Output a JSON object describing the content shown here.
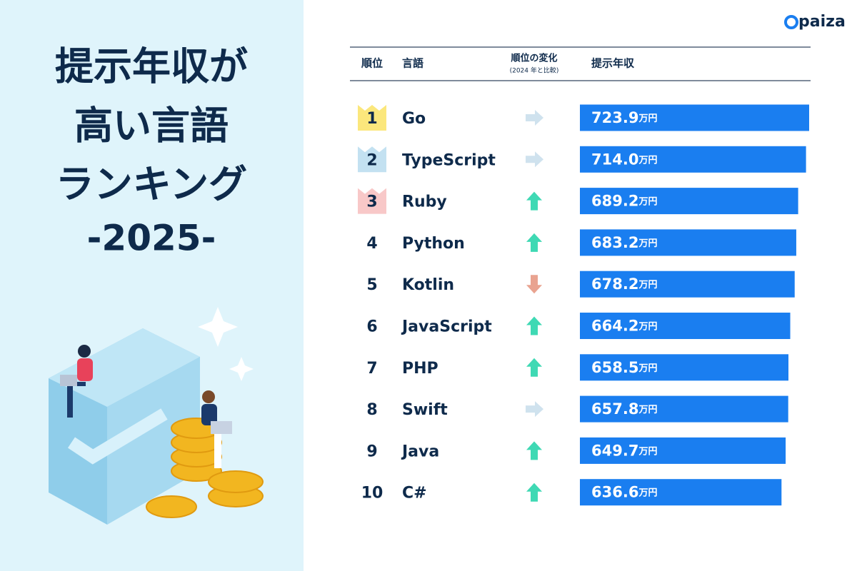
{
  "logo": "paiza",
  "title": {
    "lines": [
      "提示年収が",
      "高い言語",
      "ランキング",
      "-2025-"
    ]
  },
  "table": {
    "headers": {
      "rank": "順位",
      "language": "言語",
      "change": "順位の変化",
      "change_note": "(2024 年と比較)",
      "salary": "提示年収"
    },
    "unit": "万円",
    "bar_color": "#1a7ef0",
    "change_colors": {
      "up": "#3fd9b4",
      "down": "#e9a390",
      "same": "#cfe2ee"
    },
    "badge_colors": [
      "#fbe77c",
      "#c3e1f1",
      "#f8c8c8"
    ],
    "rows": [
      {
        "rank": 1,
        "language": "Go",
        "change": "same",
        "salary": 723.9,
        "salary_label": "723.9"
      },
      {
        "rank": 2,
        "language": "TypeScript",
        "change": "same",
        "salary": 714.0,
        "salary_label": "714.0"
      },
      {
        "rank": 3,
        "language": "Ruby",
        "change": "up",
        "salary": 689.2,
        "salary_label": "689.2"
      },
      {
        "rank": 4,
        "language": "Python",
        "change": "up",
        "salary": 683.2,
        "salary_label": "683.2"
      },
      {
        "rank": 5,
        "language": "Kotlin",
        "change": "down",
        "salary": 678.2,
        "salary_label": "678.2"
      },
      {
        "rank": 6,
        "language": "JavaScript",
        "change": "up",
        "salary": 664.2,
        "salary_label": "664.2"
      },
      {
        "rank": 7,
        "language": "PHP",
        "change": "up",
        "salary": 658.5,
        "salary_label": "658.5"
      },
      {
        "rank": 8,
        "language": "Swift",
        "change": "same",
        "salary": 657.8,
        "salary_label": "657.8"
      },
      {
        "rank": 9,
        "language": "Java",
        "change": "up",
        "salary": 649.7,
        "salary_label": "649.7"
      },
      {
        "rank": 10,
        "language": "C#",
        "change": "up",
        "salary": 636.6,
        "salary_label": "636.6"
      }
    ]
  }
}
